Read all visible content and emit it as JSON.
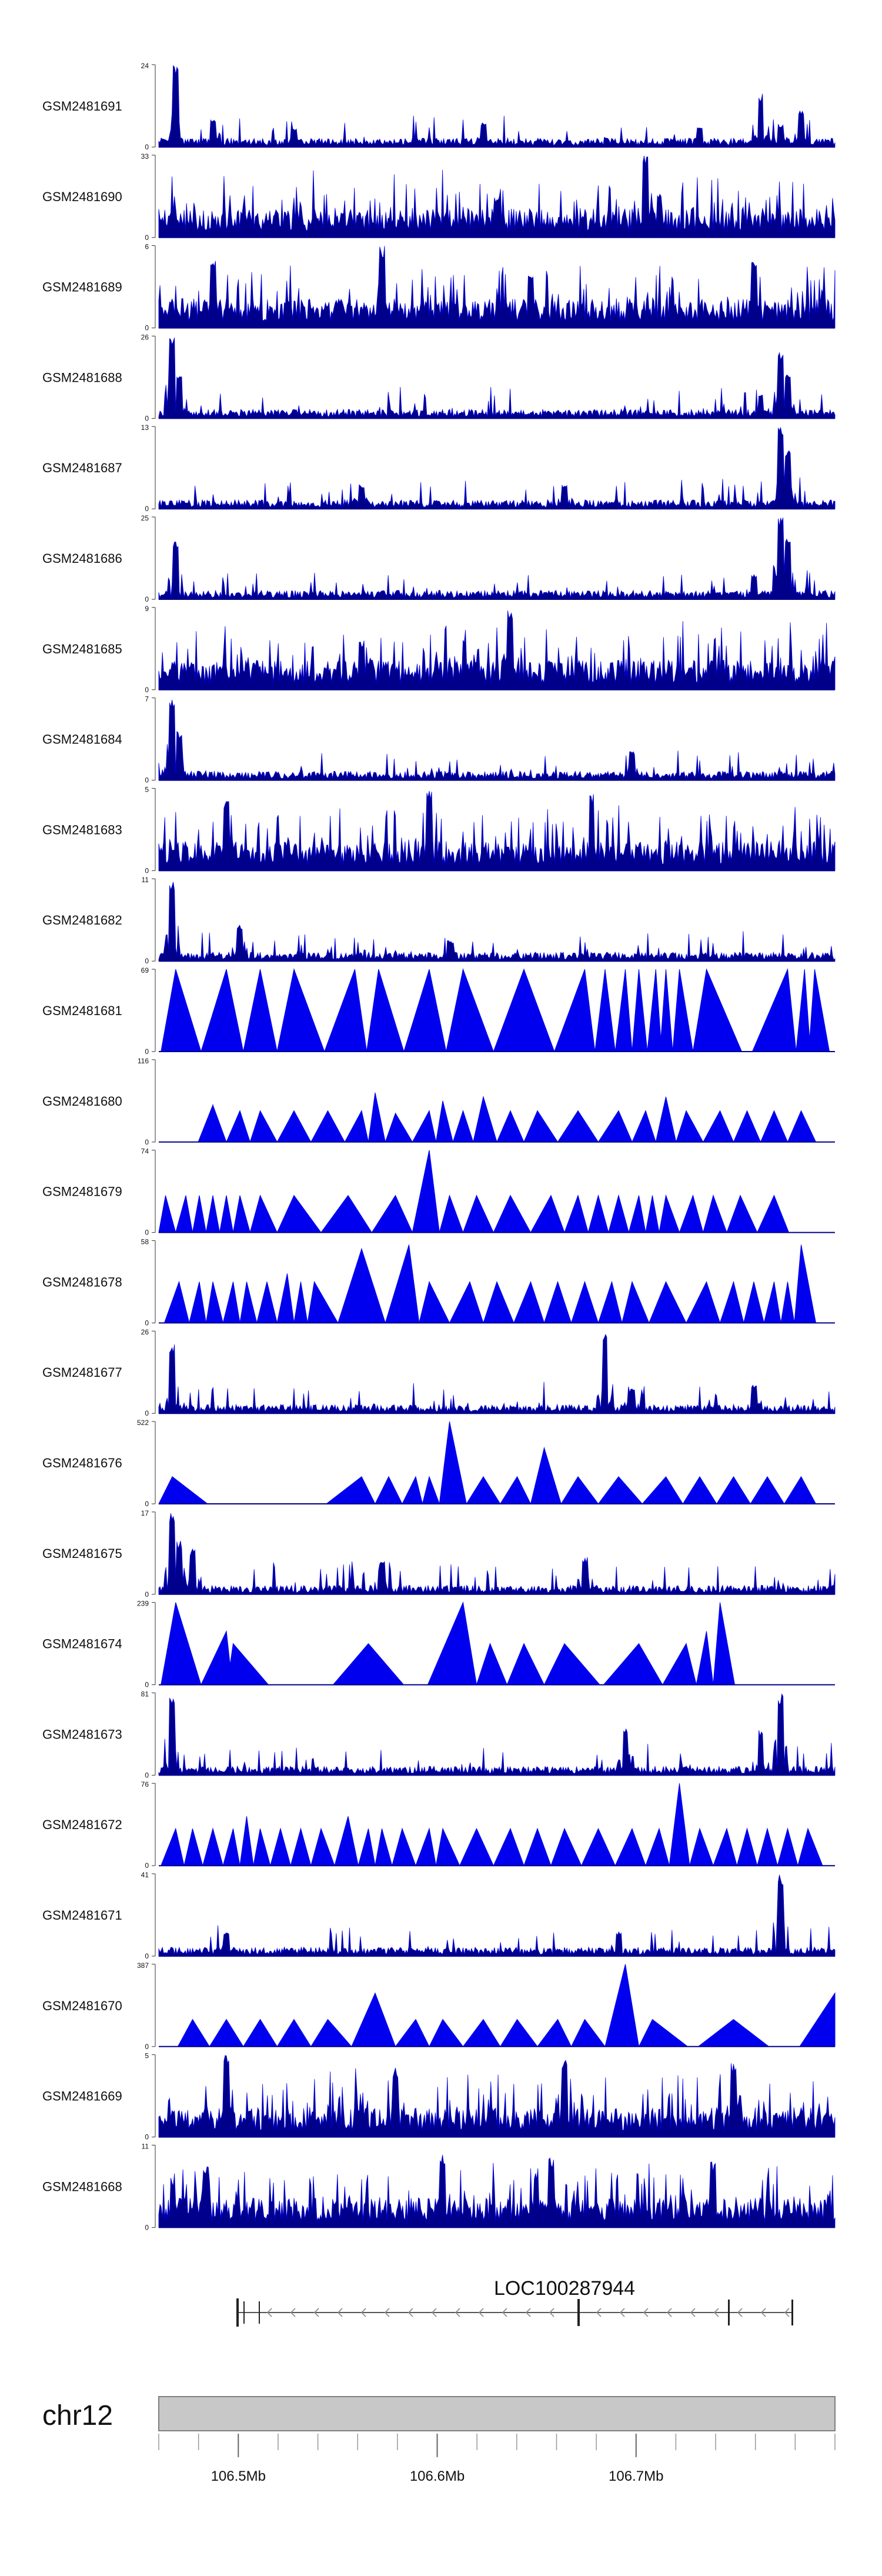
{
  "chart_data": {
    "type": "area",
    "title": "",
    "sample_tracks": [
      {
        "label": "GSM2481691",
        "ymax": "24",
        "ymin": "0",
        "style": "dense",
        "seed": 11,
        "peaks": [
          [
            0.025,
            1.0
          ],
          [
            0.08,
            0.35
          ],
          [
            0.2,
            0.22
          ],
          [
            0.48,
            0.3
          ],
          [
            0.8,
            0.25
          ],
          [
            0.89,
            0.65
          ],
          [
            0.92,
            0.28
          ],
          [
            0.95,
            0.45
          ]
        ]
      },
      {
        "label": "GSM2481690",
        "ymax": "33",
        "ymin": "0",
        "style": "dense-uniform",
        "seed": 23,
        "peaks": [
          [
            0.72,
            1.0
          ],
          [
            0.74,
            0.55
          ],
          [
            0.5,
            0.5
          ]
        ]
      },
      {
        "label": "GSM2481689",
        "ymax": "6",
        "ymin": "0",
        "style": "dense-uniform",
        "seed": 37,
        "peaks": [
          [
            0.33,
            1.0
          ],
          [
            0.08,
            0.85
          ],
          [
            0.55,
            0.7
          ],
          [
            0.88,
            0.85
          ]
        ]
      },
      {
        "label": "GSM2481688",
        "ymax": "26",
        "ymin": "0",
        "style": "dense",
        "seed": 41,
        "peaks": [
          [
            0.02,
            1.0
          ],
          [
            0.03,
            0.55
          ],
          [
            0.92,
            0.8
          ],
          [
            0.93,
            0.55
          ],
          [
            0.89,
            0.3
          ]
        ]
      },
      {
        "label": "GSM2481687",
        "ymax": "13",
        "ymin": "0",
        "style": "dense",
        "seed": 53,
        "peaks": [
          [
            0.92,
            1.0
          ],
          [
            0.93,
            0.75
          ],
          [
            0.3,
            0.3
          ],
          [
            0.6,
            0.3
          ]
        ]
      },
      {
        "label": "GSM2481686",
        "ymax": "25",
        "ymin": "0",
        "style": "dense",
        "seed": 61,
        "peaks": [
          [
            0.025,
            0.72
          ],
          [
            0.92,
            1.0
          ],
          [
            0.93,
            0.75
          ],
          [
            0.88,
            0.3
          ]
        ]
      },
      {
        "label": "GSM2481685",
        "ymax": "9",
        "ymin": "0",
        "style": "dense-uniform",
        "seed": 71,
        "peaks": [
          [
            0.52,
            1.0
          ],
          [
            0.3,
            0.6
          ]
        ]
      },
      {
        "label": "GSM2481684",
        "ymax": "7",
        "ymin": "0",
        "style": "dense",
        "seed": 83,
        "peaks": [
          [
            0.02,
            1.0
          ],
          [
            0.03,
            0.6
          ],
          [
            0.7,
            0.35
          ]
        ]
      },
      {
        "label": "GSM2481683",
        "ymax": "5",
        "ymin": "0",
        "style": "dense-uniform",
        "seed": 97,
        "peaks": [
          [
            0.4,
            1.0
          ],
          [
            0.1,
            0.85
          ],
          [
            0.64,
            0.95
          ]
        ]
      },
      {
        "label": "GSM2481682",
        "ymax": "11",
        "ymin": "0",
        "style": "dense",
        "seed": 101,
        "peaks": [
          [
            0.02,
            1.0
          ],
          [
            0.12,
            0.45
          ],
          [
            0.43,
            0.25
          ]
        ]
      },
      {
        "label": "GSM2481681",
        "ymax": "69",
        "ymin": "0",
        "style": "tri",
        "seed": 5,
        "peaks": [
          [
            0.025,
            1.0
          ],
          [
            0.1,
            1.0
          ],
          [
            0.15,
            1.0
          ],
          [
            0.2,
            1.0
          ],
          [
            0.29,
            1.0
          ],
          [
            0.325,
            1.0
          ],
          [
            0.4,
            1.0
          ],
          [
            0.45,
            1.0
          ],
          [
            0.54,
            1.0
          ],
          [
            0.63,
            1.0
          ],
          [
            0.66,
            1.0
          ],
          [
            0.69,
            1.0
          ],
          [
            0.71,
            1.0
          ],
          [
            0.735,
            1.0
          ],
          [
            0.75,
            1.0
          ],
          [
            0.77,
            1.0
          ],
          [
            0.81,
            1.0
          ],
          [
            0.93,
            1.0
          ],
          [
            0.955,
            1.0
          ],
          [
            0.97,
            1.0
          ]
        ]
      },
      {
        "label": "GSM2481680",
        "ymax": "116",
        "ymin": "0",
        "style": "tri",
        "seed": 7,
        "peaks": [
          [
            0.08,
            0.45
          ],
          [
            0.08,
            0.45
          ],
          [
            0.12,
            0.38
          ],
          [
            0.15,
            0.38
          ],
          [
            0.2,
            0.38
          ],
          [
            0.25,
            0.38
          ],
          [
            0.3,
            0.38
          ],
          [
            0.32,
            0.6
          ],
          [
            0.35,
            0.35
          ],
          [
            0.4,
            0.38
          ],
          [
            0.42,
            0.5
          ],
          [
            0.45,
            0.38
          ],
          [
            0.48,
            0.55
          ],
          [
            0.52,
            0.38
          ],
          [
            0.56,
            0.38
          ],
          [
            0.62,
            0.38
          ],
          [
            0.68,
            0.38
          ],
          [
            0.72,
            0.38
          ],
          [
            0.75,
            0.55
          ],
          [
            0.78,
            0.38
          ],
          [
            0.83,
            0.38
          ],
          [
            0.87,
            0.38
          ],
          [
            0.91,
            0.38
          ],
          [
            0.95,
            0.38
          ]
        ]
      },
      {
        "label": "GSM2481679",
        "ymax": "74",
        "ymin": "0",
        "style": "tri",
        "seed": 13,
        "peaks": [
          [
            0.01,
            0.45
          ],
          [
            0.04,
            0.45
          ],
          [
            0.06,
            0.45
          ],
          [
            0.08,
            0.45
          ],
          [
            0.1,
            0.45
          ],
          [
            0.12,
            0.45
          ],
          [
            0.15,
            0.45
          ],
          [
            0.2,
            0.45
          ],
          [
            0.28,
            0.45
          ],
          [
            0.35,
            0.45
          ],
          [
            0.4,
            1.0
          ],
          [
            0.43,
            0.45
          ],
          [
            0.47,
            0.45
          ],
          [
            0.52,
            0.45
          ],
          [
            0.58,
            0.45
          ],
          [
            0.62,
            0.45
          ],
          [
            0.65,
            0.45
          ],
          [
            0.68,
            0.45
          ],
          [
            0.71,
            0.45
          ],
          [
            0.73,
            0.45
          ],
          [
            0.75,
            0.45
          ],
          [
            0.79,
            0.45
          ],
          [
            0.82,
            0.45
          ],
          [
            0.86,
            0.45
          ],
          [
            0.91,
            0.45
          ]
        ]
      },
      {
        "label": "GSM2481678",
        "ymax": "58",
        "ymin": "0",
        "style": "tri",
        "seed": 19,
        "peaks": [
          [
            0.03,
            0.5
          ],
          [
            0.06,
            0.5
          ],
          [
            0.08,
            0.5
          ],
          [
            0.11,
            0.5
          ],
          [
            0.13,
            0.5
          ],
          [
            0.16,
            0.5
          ],
          [
            0.19,
            0.6
          ],
          [
            0.21,
            0.5
          ],
          [
            0.23,
            0.5
          ],
          [
            0.3,
            0.9
          ],
          [
            0.37,
            0.95
          ],
          [
            0.4,
            0.5
          ],
          [
            0.46,
            0.5
          ],
          [
            0.5,
            0.5
          ],
          [
            0.55,
            0.5
          ],
          [
            0.59,
            0.5
          ],
          [
            0.63,
            0.5
          ],
          [
            0.67,
            0.5
          ],
          [
            0.7,
            0.5
          ],
          [
            0.75,
            0.5
          ],
          [
            0.81,
            0.5
          ],
          [
            0.85,
            0.5
          ],
          [
            0.88,
            0.5
          ],
          [
            0.91,
            0.5
          ],
          [
            0.93,
            0.5
          ],
          [
            0.95,
            0.95
          ]
        ]
      },
      {
        "label": "GSM2481677",
        "ymax": "26",
        "ymin": "0",
        "style": "dense",
        "seed": 29,
        "peaks": [
          [
            0.02,
            0.85
          ],
          [
            0.66,
            1.0
          ],
          [
            0.7,
            0.3
          ],
          [
            0.88,
            0.35
          ]
        ]
      },
      {
        "label": "GSM2481676",
        "ymax": "522",
        "ymin": "0",
        "style": "tri",
        "seed": 31,
        "peaks": [
          [
            0.02,
            0.33
          ],
          [
            0.3,
            0.33
          ],
          [
            0.34,
            0.33
          ],
          [
            0.38,
            0.33
          ],
          [
            0.4,
            0.33
          ],
          [
            0.43,
            1.0
          ],
          [
            0.48,
            0.33
          ],
          [
            0.53,
            0.33
          ],
          [
            0.57,
            0.68
          ],
          [
            0.62,
            0.33
          ],
          [
            0.68,
            0.33
          ],
          [
            0.75,
            0.33
          ],
          [
            0.8,
            0.33
          ],
          [
            0.85,
            0.33
          ],
          [
            0.9,
            0.33
          ],
          [
            0.95,
            0.33
          ]
        ]
      },
      {
        "label": "GSM2481675",
        "ymax": "17",
        "ymin": "0",
        "style": "dense",
        "seed": 43,
        "peaks": [
          [
            0.02,
            1.0
          ],
          [
            0.03,
            0.65
          ],
          [
            0.05,
            0.55
          ],
          [
            0.33,
            0.4
          ],
          [
            0.63,
            0.45
          ]
        ]
      },
      {
        "label": "GSM2481674",
        "ymax": "239",
        "ymin": "0",
        "style": "tri",
        "seed": 47,
        "peaks": [
          [
            0.025,
            1.0
          ],
          [
            0.1,
            0.65
          ],
          [
            0.11,
            0.5
          ],
          [
            0.31,
            0.5
          ],
          [
            0.45,
            1.0
          ],
          [
            0.49,
            0.5
          ],
          [
            0.54,
            0.5
          ],
          [
            0.6,
            0.5
          ],
          [
            0.71,
            0.5
          ],
          [
            0.78,
            0.5
          ],
          [
            0.81,
            0.65
          ],
          [
            0.83,
            1.0
          ]
        ]
      },
      {
        "label": "GSM2481673",
        "ymax": "81",
        "ymin": "0",
        "style": "dense",
        "seed": 59,
        "peaks": [
          [
            0.02,
            1.0
          ],
          [
            0.69,
            0.6
          ],
          [
            0.89,
            0.55
          ],
          [
            0.92,
            1.0
          ]
        ]
      },
      {
        "label": "GSM2481672",
        "ymax": "76",
        "ymin": "0",
        "style": "tri",
        "seed": 67,
        "peaks": [
          [
            0.025,
            0.45
          ],
          [
            0.05,
            0.45
          ],
          [
            0.08,
            0.45
          ],
          [
            0.11,
            0.45
          ],
          [
            0.13,
            0.6
          ],
          [
            0.15,
            0.45
          ],
          [
            0.18,
            0.45
          ],
          [
            0.21,
            0.45
          ],
          [
            0.24,
            0.45
          ],
          [
            0.28,
            0.6
          ],
          [
            0.31,
            0.45
          ],
          [
            0.33,
            0.45
          ],
          [
            0.36,
            0.45
          ],
          [
            0.4,
            0.45
          ],
          [
            0.42,
            0.45
          ],
          [
            0.47,
            0.45
          ],
          [
            0.52,
            0.45
          ],
          [
            0.56,
            0.45
          ],
          [
            0.6,
            0.45
          ],
          [
            0.65,
            0.45
          ],
          [
            0.7,
            0.45
          ],
          [
            0.74,
            0.45
          ],
          [
            0.77,
            1.0
          ],
          [
            0.8,
            0.45
          ],
          [
            0.84,
            0.45
          ],
          [
            0.87,
            0.45
          ],
          [
            0.9,
            0.45
          ],
          [
            0.93,
            0.45
          ],
          [
            0.96,
            0.45
          ]
        ]
      },
      {
        "label": "GSM2481671",
        "ymax": "41",
        "ymin": "0",
        "style": "dense",
        "seed": 79,
        "peaks": [
          [
            0.92,
            1.0
          ],
          [
            0.1,
            0.3
          ],
          [
            0.68,
            0.3
          ]
        ]
      },
      {
        "label": "GSM2481670",
        "ymax": "387",
        "ymin": "0",
        "style": "tri",
        "seed": 89,
        "peaks": [
          [
            0.05,
            0.33
          ],
          [
            0.1,
            0.33
          ],
          [
            0.15,
            0.33
          ],
          [
            0.2,
            0.33
          ],
          [
            0.25,
            0.33
          ],
          [
            0.32,
            0.65
          ],
          [
            0.38,
            0.33
          ],
          [
            0.42,
            0.33
          ],
          [
            0.48,
            0.33
          ],
          [
            0.53,
            0.33
          ],
          [
            0.59,
            0.33
          ],
          [
            0.63,
            0.33
          ],
          [
            0.69,
            1.0
          ],
          [
            0.73,
            0.33
          ],
          [
            0.85,
            0.33
          ],
          [
            1.0,
            0.65
          ]
        ]
      },
      {
        "label": "GSM2481669",
        "ymax": "5",
        "ymin": "0",
        "style": "dense-uniform",
        "seed": 103,
        "peaks": [
          [
            0.1,
            1.0
          ],
          [
            0.35,
            0.85
          ],
          [
            0.6,
            0.95
          ],
          [
            0.85,
            0.9
          ]
        ]
      },
      {
        "label": "GSM2481668",
        "ymax": "11",
        "ymin": "0",
        "style": "dense-uniform",
        "seed": 109,
        "peaks": [
          [
            0.42,
            0.9
          ],
          [
            0.58,
            0.85
          ],
          [
            0.82,
            0.8
          ],
          [
            0.07,
            0.75
          ]
        ]
      }
    ],
    "gene_track": {
      "gene_name": "LOC100287944",
      "strand": "-"
    },
    "ideogram": {
      "chromosome": "chr12"
    },
    "x_axis": {
      "unit": "Mb",
      "range": [
        106.46,
        106.8
      ],
      "ticks": [
        {
          "value": 106.5,
          "label": "106.5Mb"
        },
        {
          "value": 106.6,
          "label": "106.6Mb"
        },
        {
          "value": 106.7,
          "label": "106.7Mb"
        }
      ],
      "minor_tick_step": 0.02
    },
    "colors": {
      "signal": "#0000ee",
      "signal_dense": "#00008b",
      "gene": "#555555",
      "ideogram_fill": "#c8c8c8",
      "ideogram_border": "#7f7f7f"
    }
  }
}
